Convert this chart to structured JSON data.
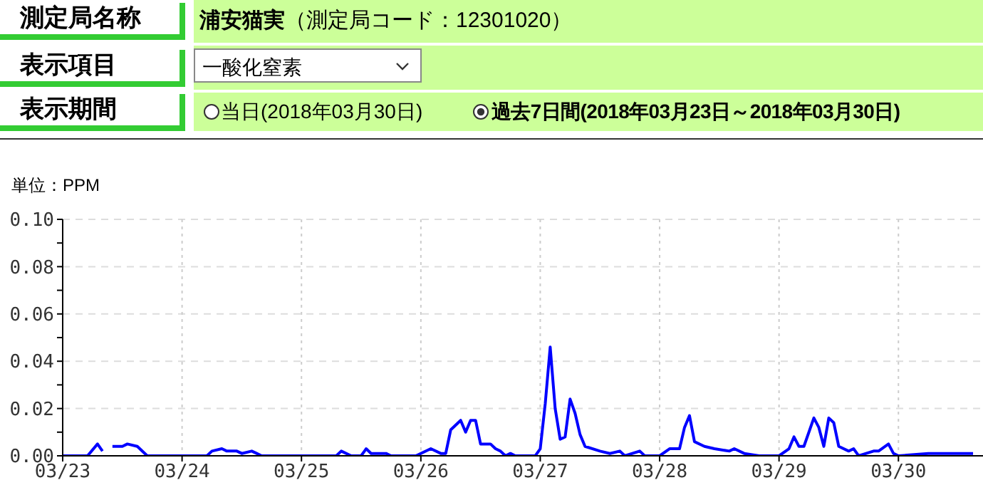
{
  "chart_data": {
    "type": "line",
    "ylabel": "単位：PPM",
    "annotations": [
      "測定局名称",
      "浦安猫実（測定局コード：12301020）",
      "表示項目",
      "一酸化窒素",
      "表示期間",
      "当日(2018年03月30日)",
      "過去7日間(2018年03月23日～2018年03月30日)"
    ],
    "x": [
      "2018-03-23T00:00",
      "2018-03-23T05:00",
      "2018-03-23T07:00",
      "2018-03-23T08:00",
      "2018-03-23T09:00",
      "2018-03-23T10:00",
      "2018-03-23T12:00",
      "2018-03-23T13:00",
      "2018-03-23T15:00",
      "2018-03-23T17:00",
      "2018-03-24T05:00",
      "2018-03-24T06:00",
      "2018-03-24T08:00",
      "2018-03-24T09:00",
      "2018-03-24T11:00",
      "2018-03-24T12:00",
      "2018-03-24T14:00",
      "2018-03-24T15:00",
      "2018-03-24T16:00",
      "2018-03-25T07:00",
      "2018-03-25T08:00",
      "2018-03-25T10:00",
      "2018-03-25T12:00",
      "2018-03-25T13:00",
      "2018-03-25T14:00",
      "2018-03-25T17:00",
      "2018-03-25T18:00",
      "2018-03-25T23:00",
      "2018-03-26T02:00",
      "2018-03-26T04:00",
      "2018-03-26T05:00",
      "2018-03-26T06:00",
      "2018-03-26T08:00",
      "2018-03-26T09:00",
      "2018-03-26T10:00",
      "2018-03-26T11:00",
      "2018-03-26T12:00",
      "2018-03-26T14:00",
      "2018-03-26T15:00",
      "2018-03-26T16:00",
      "2018-03-26T17:00",
      "2018-03-26T18:00",
      "2018-03-26T19:00",
      "2018-03-26T23:00",
      "2018-03-27T00:00",
      "2018-03-27T01:00",
      "2018-03-27T02:00",
      "2018-03-27T03:00",
      "2018-03-27T04:00",
      "2018-03-27T05:00",
      "2018-03-27T06:00",
      "2018-03-27T07:00",
      "2018-03-27T08:00",
      "2018-03-27T09:00",
      "2018-03-27T12:00",
      "2018-03-27T14:00",
      "2018-03-27T16:00",
      "2018-03-27T17:00",
      "2018-03-27T20:00",
      "2018-03-27T21:00",
      "2018-03-28T00:00",
      "2018-03-28T02:00",
      "2018-03-28T04:00",
      "2018-03-28T05:00",
      "2018-03-28T06:00",
      "2018-03-28T07:00",
      "2018-03-28T09:00",
      "2018-03-28T11:00",
      "2018-03-28T14:00",
      "2018-03-28T15:00",
      "2018-03-28T17:00",
      "2018-03-28T20:00",
      "2018-03-29T00:00",
      "2018-03-29T02:00",
      "2018-03-29T03:00",
      "2018-03-29T04:00",
      "2018-03-29T05:00",
      "2018-03-29T07:00",
      "2018-03-29T08:00",
      "2018-03-29T09:00",
      "2018-03-29T10:00",
      "2018-03-29T11:00",
      "2018-03-29T12:00",
      "2018-03-29T14:00",
      "2018-03-29T15:00",
      "2018-03-29T16:00",
      "2018-03-29T19:00",
      "2018-03-29T20:00",
      "2018-03-29T22:00",
      "2018-03-29T23:00",
      "2018-03-30T00:00",
      "2018-03-30T06:00",
      "2018-03-30T15:00"
    ],
    "series": [
      {
        "color": "#0000ff",
        "values": [
          0,
          0,
          0.005,
          0.002,
          null,
          0.004,
          0.004,
          0.005,
          0.004,
          0,
          0,
          0.002,
          0.003,
          0.002,
          0.002,
          0.001,
          0.002,
          0.001,
          0,
          0,
          0.002,
          0,
          0,
          0.003,
          0.001,
          0.001,
          0,
          0,
          0.003,
          0.001,
          0.001,
          0.011,
          0.015,
          0.01,
          0.015,
          0.015,
          0.005,
          0.005,
          0.003,
          0.002,
          0,
          0.001,
          0,
          0,
          0.003,
          0.022,
          0.046,
          0.02,
          0.007,
          0.008,
          0.024,
          0.018,
          0.009,
          0.004,
          0.002,
          0.001,
          0.002,
          0,
          0.002,
          0,
          0,
          0.003,
          0.003,
          0.012,
          0.017,
          0.006,
          0.004,
          0.003,
          0.002,
          0.003,
          0.001,
          0,
          0,
          0.003,
          0.008,
          0.004,
          0.004,
          0.016,
          0.012,
          0.004,
          0.016,
          0.014,
          0.004,
          0.002,
          0.003,
          0,
          0.002,
          0.002,
          0.005,
          0.001,
          0,
          0.001,
          0.001
        ]
      }
    ],
    "xlim": [
      "2018-03-23T00:00",
      "2018-03-30T17:00"
    ],
    "xticks": [
      {
        "value": "2018-03-23",
        "label": "03/23"
      },
      {
        "value": "2018-03-24",
        "label": "03/24"
      },
      {
        "value": "2018-03-25",
        "label": "03/25"
      },
      {
        "value": "2018-03-26",
        "label": "03/26"
      },
      {
        "value": "2018-03-27",
        "label": "03/27"
      },
      {
        "value": "2018-03-28",
        "label": "03/28"
      },
      {
        "value": "2018-03-29",
        "label": "03/29"
      },
      {
        "value": "2018-03-30",
        "label": "03/30"
      }
    ],
    "ylim": [
      0,
      0.1
    ],
    "yticks": [
      {
        "value": 0,
        "label": "0.00"
      },
      {
        "value": 0.01,
        "label": null
      },
      {
        "value": 0.02,
        "label": "0.02"
      },
      {
        "value": 0.03,
        "label": null
      },
      {
        "value": 0.04,
        "label": "0.04"
      },
      {
        "value": 0.05,
        "label": null
      },
      {
        "value": 0.06,
        "label": "0.06"
      },
      {
        "value": 0.07,
        "label": null
      },
      {
        "value": 0.08,
        "label": "0.08"
      },
      {
        "value": 0.09,
        "label": null
      },
      {
        "value": 0.1,
        "label": "0.10"
      }
    ],
    "grid": true,
    "marker": "none",
    "line_style": "solid"
  }
}
